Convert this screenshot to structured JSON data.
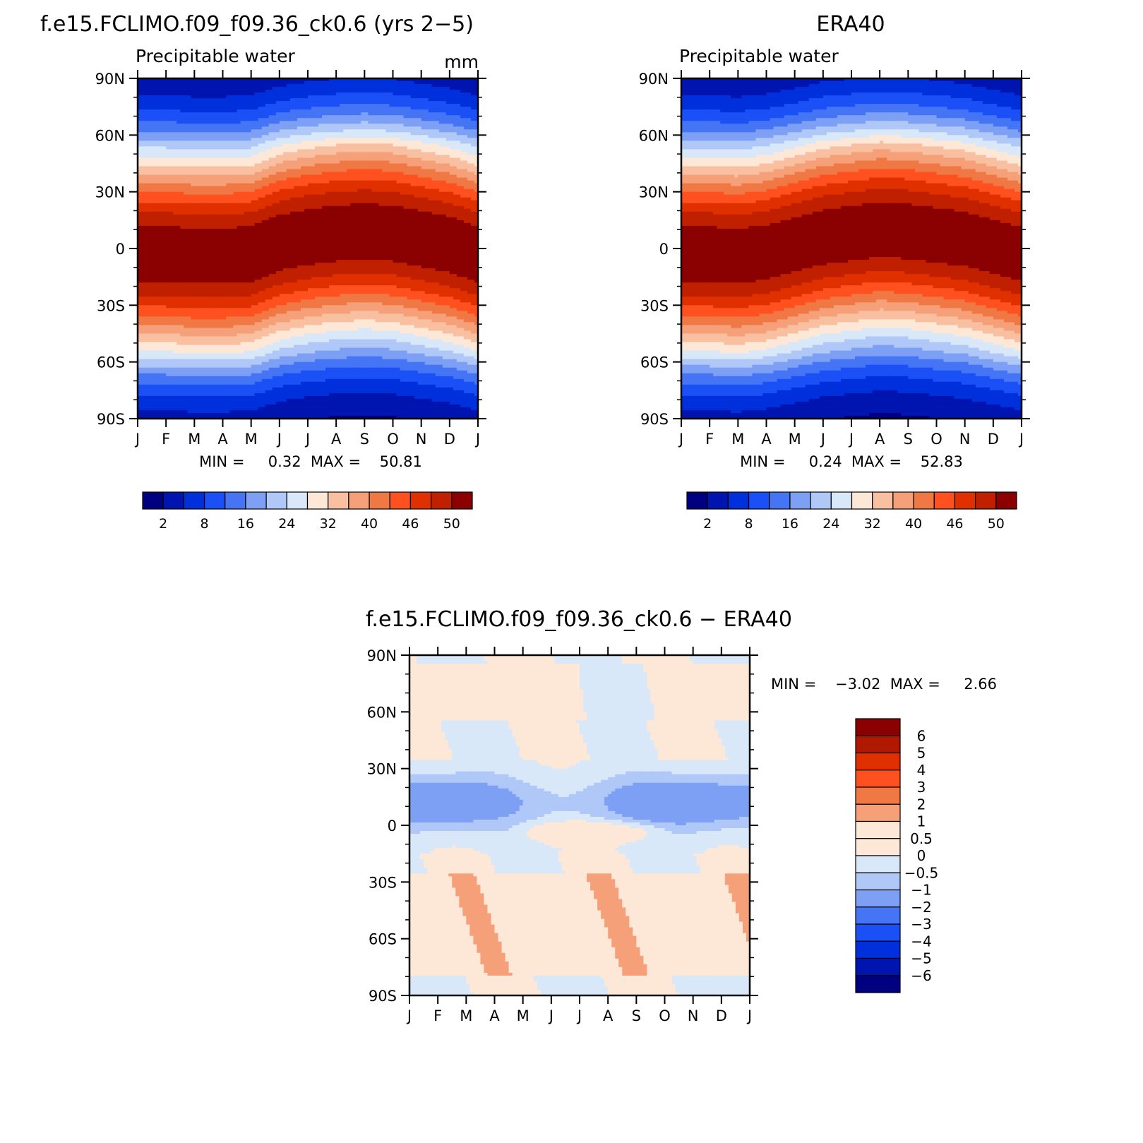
{
  "chart_data": [
    {
      "type": "heatmap",
      "title": "f.e15.FCLIMO.f09_f09.36_ck0.6 (yrs 2−5)",
      "subtitle": "Precipitable water",
      "units": "mm",
      "x_ticks": [
        "J",
        "F",
        "M",
        "A",
        "M",
        "J",
        "J",
        "A",
        "S",
        "O",
        "N",
        "D",
        "J"
      ],
      "y_ticks": [
        "90N",
        "60N",
        "30N",
        "0",
        "30S",
        "60S",
        "90S"
      ],
      "ylim": [
        -90,
        90
      ],
      "stats": "MIN =     0.32  MAX =    50.81",
      "min": 0.32,
      "max": 50.81,
      "itcz_lat_by_month": [
        -3,
        -3,
        -4,
        -4,
        -3,
        3,
        6,
        8,
        9,
        8,
        5,
        2,
        -3
      ],
      "colorbar": {
        "orientation": "horizontal",
        "colors": [
          "#000080",
          "#0015b0",
          "#0030dc",
          "#1a50f5",
          "#4575f5",
          "#7da0f5",
          "#b0c8f8",
          "#d8e8f8",
          "#fde8d8",
          "#f8c0a0",
          "#f5a078",
          "#f07845",
          "#ff5020",
          "#e03000",
          "#c02000",
          "#8b0000"
        ],
        "labels": [
          "2",
          "8",
          "16",
          "24",
          "32",
          "40",
          "46",
          "50"
        ]
      }
    },
    {
      "type": "heatmap",
      "title": "ERA40",
      "subtitle": "Precipitable water",
      "x_ticks": [
        "J",
        "F",
        "M",
        "A",
        "M",
        "J",
        "J",
        "A",
        "S",
        "O",
        "N",
        "D",
        "J"
      ],
      "y_ticks": [
        "90N",
        "60N",
        "30N",
        "0",
        "30S",
        "60S",
        "90S"
      ],
      "ylim": [
        -90,
        90
      ],
      "stats": "MIN =     0.24  MAX =    52.83",
      "min": 0.24,
      "max": 52.83,
      "itcz_lat_by_month": [
        -3,
        -3,
        -4,
        -2,
        2,
        6,
        8,
        10,
        9,
        7,
        5,
        1,
        -3
      ],
      "colorbar": {
        "orientation": "horizontal",
        "colors": [
          "#000080",
          "#0015b0",
          "#0030dc",
          "#1a50f5",
          "#4575f5",
          "#7da0f5",
          "#b0c8f8",
          "#d8e8f8",
          "#fde8d8",
          "#f8c0a0",
          "#f5a078",
          "#f07845",
          "#ff5020",
          "#e03000",
          "#c02000",
          "#8b0000"
        ],
        "labels": [
          "2",
          "8",
          "16",
          "24",
          "32",
          "40",
          "46",
          "50"
        ]
      }
    },
    {
      "type": "heatmap",
      "title": "f.e15.FCLIMO.f09_f09.36_ck0.6 − ERA40",
      "x_ticks": [
        "J",
        "F",
        "M",
        "A",
        "M",
        "J",
        "J",
        "A",
        "S",
        "O",
        "N",
        "D",
        "J"
      ],
      "y_ticks": [
        "90N",
        "60N",
        "30N",
        "0",
        "30S",
        "60S",
        "90S"
      ],
      "ylim": [
        -90,
        90
      ],
      "stats": "MIN =    −3.02  MAX =     2.66",
      "min": -3.02,
      "max": 2.66,
      "colorbar": {
        "orientation": "vertical",
        "colors": [
          "#8b0000",
          "#b01800",
          "#e03000",
          "#ff5020",
          "#f07845",
          "#f5a078",
          "#fde8d8",
          "#fde8d8",
          "#d8e8f8",
          "#b0c8f8",
          "#7da0f5",
          "#4575f5",
          "#1a50f5",
          "#0030dc",
          "#0015b0",
          "#000080"
        ],
        "labels": [
          "6",
          "5",
          "4",
          "3",
          "2",
          "1",
          "0.5",
          "0",
          "−0.5",
          "−1",
          "−2",
          "−3",
          "−4",
          "−5",
          "−6"
        ]
      }
    }
  ]
}
